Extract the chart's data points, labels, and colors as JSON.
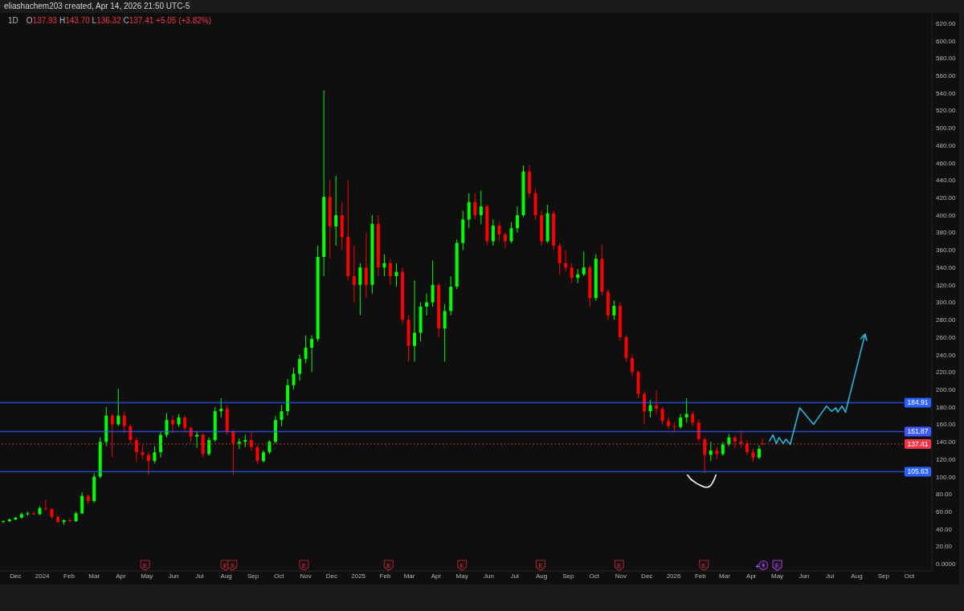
{
  "chart_data": {
    "type": "candlestick",
    "title": "eliashachem203 created, Apr 14, 2026 21:50 UTC-5",
    "subtitle": "1D",
    "annotations": [
      "O137.93 H143.70 L136.32 C137.41 +5.05 (+3.82%)",
      {
        "text": "E",
        "x": "2024-04-29",
        "y": -2
      },
      {
        "text": "E",
        "x": "2024-07-31",
        "y": -2
      },
      {
        "text": "S",
        "x": "2024-08-08",
        "y": -2
      },
      {
        "text": "E",
        "x": "2024-10-30",
        "y": -2
      },
      {
        "text": "E",
        "x": "2025-02-05",
        "y": -2
      },
      {
        "text": "E",
        "x": "2025-05-01",
        "y": -2
      },
      {
        "text": "E",
        "x": "2025-07-31",
        "y": -2
      },
      {
        "text": "E",
        "x": "2025-10-30",
        "y": -2
      },
      {
        "text": "E",
        "x": "2026-02-05",
        "y": -2
      },
      {
        "text": "E",
        "x": "2026-05-01",
        "y": -2
      }
    ],
    "x": [
      "2023-11-17",
      "2023-11-24",
      "2023-12-01",
      "2023-12-08",
      "2023-12-15",
      "2023-12-22",
      "2023-12-29",
      "2024-01-05",
      "2024-01-12",
      "2024-01-19",
      "2024-01-26",
      "2024-02-02",
      "2024-02-09",
      "2024-02-16",
      "2024-02-23",
      "2024-03-01",
      "2024-03-08",
      "2024-03-15",
      "2024-03-22",
      "2024-03-29",
      "2024-04-05",
      "2024-04-12",
      "2024-04-19",
      "2024-04-26",
      "2024-05-03",
      "2024-05-10",
      "2024-05-17",
      "2024-05-24",
      "2024-05-31",
      "2024-06-07",
      "2024-06-14",
      "2024-06-21",
      "2024-06-28",
      "2024-07-05",
      "2024-07-12",
      "2024-07-19",
      "2024-07-26",
      "2024-08-02",
      "2024-08-09",
      "2024-08-16",
      "2024-08-23",
      "2024-08-30",
      "2024-09-06",
      "2024-09-13",
      "2024-09-20",
      "2024-09-27",
      "2024-10-04",
      "2024-10-11",
      "2024-10-18",
      "2024-10-25",
      "2024-11-01",
      "2024-11-08",
      "2024-11-15",
      "2024-11-22",
      "2024-11-29",
      "2024-12-06",
      "2024-12-13",
      "2024-12-20",
      "2024-12-27",
      "2025-01-03",
      "2025-01-10",
      "2025-01-17",
      "2025-01-24",
      "2025-01-31",
      "2025-02-07",
      "2025-02-14",
      "2025-02-21",
      "2025-02-28",
      "2025-03-07",
      "2025-03-14",
      "2025-03-21",
      "2025-03-28",
      "2025-04-04",
      "2025-04-11",
      "2025-04-18",
      "2025-04-25",
      "2025-05-02",
      "2025-05-09",
      "2025-05-16",
      "2025-05-23",
      "2025-05-30",
      "2025-06-06",
      "2025-06-13",
      "2025-06-20",
      "2025-06-27",
      "2025-07-04",
      "2025-07-11",
      "2025-07-18",
      "2025-07-25",
      "2025-08-01",
      "2025-08-08",
      "2025-08-15",
      "2025-08-22",
      "2025-08-29",
      "2025-09-05",
      "2025-09-12",
      "2025-09-19",
      "2025-09-26",
      "2025-10-03",
      "2025-10-10",
      "2025-10-17",
      "2025-10-24",
      "2025-10-31",
      "2025-11-07",
      "2025-11-14",
      "2025-11-21",
      "2025-11-28",
      "2025-12-05",
      "2025-12-12",
      "2025-12-19",
      "2025-12-26",
      "2026-01-02",
      "2026-01-09",
      "2026-01-16",
      "2026-01-23",
      "2026-01-30",
      "2026-02-06",
      "2026-02-13",
      "2026-02-20",
      "2026-02-27",
      "2026-03-06",
      "2026-03-13",
      "2026-03-20",
      "2026-03-27",
      "2026-04-03",
      "2026-04-10",
      "2026-04-14"
    ],
    "ohlc": [
      [
        48,
        50,
        47,
        49
      ],
      [
        49,
        52,
        48,
        51
      ],
      [
        51,
        54,
        50,
        53
      ],
      [
        53,
        59,
        52,
        57
      ],
      [
        57,
        60,
        55,
        58
      ],
      [
        58,
        60,
        56,
        57
      ],
      [
        57,
        66,
        56,
        64
      ],
      [
        64,
        73,
        61,
        63
      ],
      [
        63,
        64,
        52,
        54
      ],
      [
        54,
        55,
        47,
        48
      ],
      [
        48,
        51,
        45,
        50
      ],
      [
        50,
        52,
        48,
        49
      ],
      [
        49,
        60,
        48,
        58
      ],
      [
        58,
        82,
        57,
        78
      ],
      [
        78,
        80,
        68,
        72
      ],
      [
        72,
        104,
        70,
        100
      ],
      [
        100,
        145,
        98,
        140
      ],
      [
        140,
        180,
        135,
        170
      ],
      [
        170,
        172,
        122,
        160
      ],
      [
        160,
        201,
        158,
        170
      ],
      [
        170,
        175,
        150,
        158
      ],
      [
        158,
        160,
        138,
        142
      ],
      [
        142,
        145,
        117,
        128
      ],
      [
        128,
        136,
        120,
        125
      ],
      [
        125,
        128,
        102,
        118
      ],
      [
        118,
        135,
        115,
        128
      ],
      [
        128,
        152,
        122,
        148
      ],
      [
        148,
        173,
        145,
        165
      ],
      [
        165,
        170,
        150,
        160
      ],
      [
        160,
        172,
        157,
        168
      ],
      [
        168,
        170,
        152,
        156
      ],
      [
        156,
        158,
        140,
        146
      ],
      [
        146,
        152,
        133,
        148
      ],
      [
        148,
        150,
        122,
        126
      ],
      [
        126,
        145,
        124,
        142
      ],
      [
        142,
        180,
        140,
        175
      ],
      [
        175,
        190,
        168,
        178
      ],
      [
        178,
        182,
        148,
        152
      ],
      [
        152,
        154,
        102,
        138
      ],
      [
        138,
        144,
        132,
        140
      ],
      [
        140,
        148,
        134,
        142
      ],
      [
        142,
        152,
        130,
        134
      ],
      [
        134,
        136,
        114,
        118
      ],
      [
        118,
        130,
        116,
        128
      ],
      [
        128,
        142,
        126,
        140
      ],
      [
        140,
        170,
        138,
        165
      ],
      [
        165,
        182,
        158,
        175
      ],
      [
        175,
        212,
        170,
        205
      ],
      [
        205,
        225,
        200,
        218
      ],
      [
        218,
        240,
        210,
        235
      ],
      [
        235,
        262,
        230,
        248
      ],
      [
        248,
        262,
        220,
        258
      ],
      [
        258,
        365,
        255,
        352
      ],
      [
        352,
        543,
        330,
        421
      ],
      [
        421,
        440,
        350,
        387
      ],
      [
        387,
        445,
        365,
        400
      ],
      [
        400,
        415,
        360,
        375
      ],
      [
        375,
        440,
        325,
        330
      ],
      [
        330,
        365,
        300,
        320
      ],
      [
        320,
        345,
        285,
        340
      ],
      [
        340,
        380,
        305,
        320
      ],
      [
        320,
        400,
        310,
        390
      ],
      [
        390,
        400,
        330,
        340
      ],
      [
        340,
        355,
        330,
        345
      ],
      [
        345,
        350,
        320,
        330
      ],
      [
        330,
        345,
        318,
        335
      ],
      [
        335,
        340,
        275,
        280
      ],
      [
        280,
        285,
        232,
        250
      ],
      [
        250,
        325,
        232,
        265
      ],
      [
        265,
        300,
        255,
        295
      ],
      [
        295,
        310,
        285,
        300
      ],
      [
        300,
        348,
        295,
        320
      ],
      [
        320,
        322,
        260,
        270
      ],
      [
        270,
        298,
        232,
        290
      ],
      [
        290,
        330,
        285,
        318
      ],
      [
        318,
        372,
        315,
        368
      ],
      [
        368,
        405,
        360,
        395
      ],
      [
        395,
        425,
        385,
        415
      ],
      [
        415,
        425,
        395,
        400
      ],
      [
        400,
        428,
        390,
        410
      ],
      [
        410,
        412,
        365,
        370
      ],
      [
        370,
        395,
        365,
        388
      ],
      [
        388,
        392,
        370,
        378
      ],
      [
        378,
        380,
        362,
        370
      ],
      [
        370,
        392,
        368,
        385
      ],
      [
        385,
        410,
        380,
        400
      ],
      [
        400,
        457,
        398,
        450
      ],
      [
        450,
        457,
        420,
        425
      ],
      [
        425,
        430,
        395,
        400
      ],
      [
        400,
        405,
        365,
        370
      ],
      [
        370,
        412,
        368,
        402
      ],
      [
        402,
        405,
        360,
        365
      ],
      [
        365,
        368,
        332,
        345
      ],
      [
        345,
        360,
        335,
        340
      ],
      [
        340,
        345,
        322,
        328
      ],
      [
        328,
        338,
        322,
        332
      ],
      [
        332,
        358,
        330,
        340
      ],
      [
        340,
        342,
        295,
        305
      ],
      [
        305,
        355,
        302,
        350
      ],
      [
        350,
        366,
        308,
        312
      ],
      [
        312,
        315,
        280,
        285
      ],
      [
        285,
        302,
        280,
        296
      ],
      [
        296,
        300,
        256,
        260
      ],
      [
        260,
        262,
        232,
        236
      ],
      [
        236,
        240,
        215,
        220
      ],
      [
        220,
        222,
        190,
        195
      ],
      [
        195,
        198,
        160,
        175
      ],
      [
        175,
        188,
        168,
        182
      ],
      [
        182,
        199,
        172,
        178
      ],
      [
        178,
        180,
        160,
        164
      ],
      [
        164,
        168,
        155,
        158
      ],
      [
        158,
        162,
        152,
        157
      ],
      [
        157,
        172,
        155,
        168
      ],
      [
        168,
        190,
        162,
        172
      ],
      [
        172,
        175,
        158,
        162
      ],
      [
        162,
        166,
        140,
        143
      ],
      [
        143,
        145,
        104,
        125
      ],
      [
        125,
        140,
        118,
        130
      ],
      [
        130,
        134,
        120,
        126
      ],
      [
        126,
        140,
        124,
        137
      ],
      [
        137,
        149,
        135,
        145
      ],
      [
        145,
        147,
        133,
        140
      ],
      [
        140,
        153,
        133,
        138
      ],
      [
        138,
        142,
        125,
        128
      ],
      [
        128,
        132,
        117,
        122
      ],
      [
        122,
        136,
        120,
        132
      ],
      [
        137.93,
        143.7,
        136.32,
        137.41
      ]
    ],
    "colors": [
      "#00ff00",
      "#00ff00",
      "#00ff00",
      "#00ff00",
      "#00ff00",
      "#ff0000",
      "#00ff00",
      "#ff0000",
      "#ff0000",
      "#ff0000",
      "#00ff00",
      "#ff0000",
      "#00ff00",
      "#00ff00",
      "#ff0000",
      "#00ff00",
      "#00ff00",
      "#00ff00",
      "#ff0000",
      "#00ff00",
      "#ff0000",
      "#ff0000",
      "#ff0000",
      "#ff0000",
      "#ff0000",
      "#00ff00",
      "#00ff00",
      "#00ff00",
      "#ff0000",
      "#00ff00",
      "#ff0000",
      "#ff0000",
      "#00ff00",
      "#ff0000",
      "#00ff00",
      "#00ff00",
      "#00ff00",
      "#ff0000",
      "#ff0000",
      "#00ff00",
      "#00ff00",
      "#ff0000",
      "#ff0000",
      "#00ff00",
      "#00ff00",
      "#00ff00",
      "#00ff00",
      "#00ff00",
      "#00ff00",
      "#00ff00",
      "#00ff00",
      "#00ff00",
      "#00ff00",
      "#00ff00",
      "#ff0000",
      "#00ff00",
      "#ff0000",
      "#ff0000",
      "#ff0000",
      "#00ff00",
      "#ff0000",
      "#00ff00",
      "#ff0000",
      "#00ff00",
      "#ff0000",
      "#00ff00",
      "#ff0000",
      "#ff0000",
      "#00ff00",
      "#00ff00",
      "#00ff00",
      "#00ff00",
      "#ff0000",
      "#00ff00",
      "#00ff00",
      "#00ff00",
      "#00ff00",
      "#00ff00",
      "#ff0000",
      "#00ff00",
      "#ff0000",
      "#00ff00",
      "#ff0000",
      "#ff0000",
      "#00ff00",
      "#00ff00",
      "#00ff00",
      "#ff0000",
      "#ff0000",
      "#ff0000",
      "#00ff00",
      "#ff0000",
      "#ff0000",
      "#ff0000",
      "#ff0000",
      "#00ff00",
      "#00ff00",
      "#ff0000",
      "#00ff00",
      "#ff0000",
      "#ff0000",
      "#00ff00",
      "#ff0000",
      "#ff0000",
      "#ff0000",
      "#ff0000",
      "#ff0000",
      "#00ff00",
      "#ff0000",
      "#ff0000",
      "#ff0000",
      "#ff0000",
      "#00ff00",
      "#00ff00",
      "#ff0000",
      "#ff0000",
      "#ff0000",
      "#00ff00",
      "#ff0000",
      "#00ff00",
      "#00ff00",
      "#ff0000",
      "#ff0000",
      "#ff0000",
      "#ff0000",
      "#00ff00",
      "#ff0000"
    ],
    "series": [
      {
        "type": "line",
        "color": "#26b5d9",
        "x": [
          "2026-04-22",
          "2026-04-26",
          "2026-04-30",
          "2026-05-03",
          "2026-05-08",
          "2026-05-11",
          "2026-05-16",
          "2026-05-27",
          "2026-06-12",
          "2026-06-27",
          "2026-07-03",
          "2026-07-08",
          "2026-07-10",
          "2026-07-15",
          "2026-07-19"
        ],
        "values": [
          141,
          148,
          138,
          145,
          138,
          143,
          137,
          179,
          160,
          181,
          175,
          179,
          174,
          181,
          174
        ]
      },
      {
        "type": "line",
        "color": "#ffffff",
        "x": [
          "2026-01-17",
          "2026-01-21",
          "2026-01-28",
          "2026-02-01",
          "2026-02-06",
          "2026-02-10",
          "2026-02-13",
          "2026-02-15",
          "2026-02-17",
          "2026-02-19"
        ],
        "values": [
          102,
          97,
          92,
          90,
          88,
          88,
          90,
          93,
          97,
          102
        ]
      }
    ],
    "xlim": [
      "2023-11-13",
      "2026-10-27"
    ],
    "xticks": [
      {
        "value": "2023-12-01",
        "label": "Dec"
      },
      {
        "value": "2024-01-01",
        "label": "2024"
      },
      {
        "value": "2024-02-01",
        "label": "Feb"
      },
      {
        "value": "2024-03-01",
        "label": "Mar"
      },
      {
        "value": "2024-04-01",
        "label": "Apr"
      },
      {
        "value": "2024-05-01",
        "label": "May"
      },
      {
        "value": "2024-06-01",
        "label": "Jun"
      },
      {
        "value": "2024-07-01",
        "label": "Jul"
      },
      {
        "value": "2024-08-01",
        "label": "Aug"
      },
      {
        "value": "2024-09-01",
        "label": "Sep"
      },
      {
        "value": "2024-10-01",
        "label": "Oct"
      },
      {
        "value": "2024-11-01",
        "label": "Nov"
      },
      {
        "value": "2024-12-01",
        "label": "Dec"
      },
      {
        "value": "2025-01-01",
        "label": "2025"
      },
      {
        "value": "2025-02-01",
        "label": "Feb"
      },
      {
        "value": "2025-03-01",
        "label": "Mar"
      },
      {
        "value": "2025-04-01",
        "label": "Apr"
      },
      {
        "value": "2025-05-01",
        "label": "May"
      },
      {
        "value": "2025-06-01",
        "label": "Jun"
      },
      {
        "value": "2025-07-01",
        "label": "Jul"
      },
      {
        "value": "2025-08-01",
        "label": "Aug"
      },
      {
        "value": "2025-09-01",
        "label": "Sep"
      },
      {
        "value": "2025-10-01",
        "label": "Oct"
      },
      {
        "value": "2025-11-01",
        "label": "Nov"
      },
      {
        "value": "2025-12-01",
        "label": "Dec"
      },
      {
        "value": "2026-01-01",
        "label": "2026"
      },
      {
        "value": "2026-02-01",
        "label": "Feb"
      },
      {
        "value": "2026-03-01",
        "label": "Mar"
      },
      {
        "value": "2026-04-01",
        "label": "Apr"
      },
      {
        "value": "2026-05-01",
        "label": "May"
      },
      {
        "value": "2026-06-01",
        "label": "Jun"
      },
      {
        "value": "2026-07-01",
        "label": "Jul"
      },
      {
        "value": "2026-08-01",
        "label": "Aug"
      },
      {
        "value": "2026-09-01",
        "label": "Sep"
      },
      {
        "value": "2026-10-01",
        "label": "Oct"
      }
    ],
    "ylim": [
      -8,
      632
    ],
    "yticks": [
      {
        "value": 0,
        "label": "0.0000"
      },
      {
        "value": 20,
        "label": "20.00"
      },
      {
        "value": 40,
        "label": "40.00"
      },
      {
        "value": 60,
        "label": "60.00"
      },
      {
        "value": 80,
        "label": "80.00"
      },
      {
        "value": 100,
        "label": "100.00"
      },
      {
        "value": 120,
        "label": "120.00"
      },
      {
        "value": 140,
        "label": "140.00"
      },
      {
        "value": 160,
        "label": "160.00"
      },
      {
        "value": 180,
        "label": "180.00"
      },
      {
        "value": 200,
        "label": "200.00"
      },
      {
        "value": 220,
        "label": "220.00"
      },
      {
        "value": 240,
        "label": "240.00"
      },
      {
        "value": 260,
        "label": "260.00"
      },
      {
        "value": 280,
        "label": "280.00"
      },
      {
        "value": 300,
        "label": "300.00"
      },
      {
        "value": 320,
        "label": "320.00"
      },
      {
        "value": 340,
        "label": "340.00"
      },
      {
        "value": 360,
        "label": "360.00"
      },
      {
        "value": 380,
        "label": "380.00"
      },
      {
        "value": 400,
        "label": "400.00"
      },
      {
        "value": 420,
        "label": "420.00"
      },
      {
        "value": 440,
        "label": "440.00"
      },
      {
        "value": 460,
        "label": "460.00"
      },
      {
        "value": 480,
        "label": "480.00"
      },
      {
        "value": 500,
        "label": "500.00"
      },
      {
        "value": 520,
        "label": "520.00"
      },
      {
        "value": 540,
        "label": "540.00"
      },
      {
        "value": 560,
        "label": "560.00"
      },
      {
        "value": 580,
        "label": "580.00"
      },
      {
        "value": 600,
        "label": "600.00"
      },
      {
        "value": 620,
        "label": "620.00"
      }
    ],
    "ref_lines": [
      {
        "axis": "y",
        "value": 184.91,
        "label": "184.91",
        "color": "#2962ff"
      },
      {
        "axis": "y",
        "value": 151.87,
        "label": "151.87",
        "color": "#3d5afe"
      },
      {
        "axis": "y",
        "value": 137.41,
        "label": "137.41",
        "color": "#f23645",
        "line_style": "dotted"
      },
      {
        "axis": "y",
        "value": 105.63,
        "label": "105.63",
        "color": "#2962ff"
      }
    ]
  }
}
